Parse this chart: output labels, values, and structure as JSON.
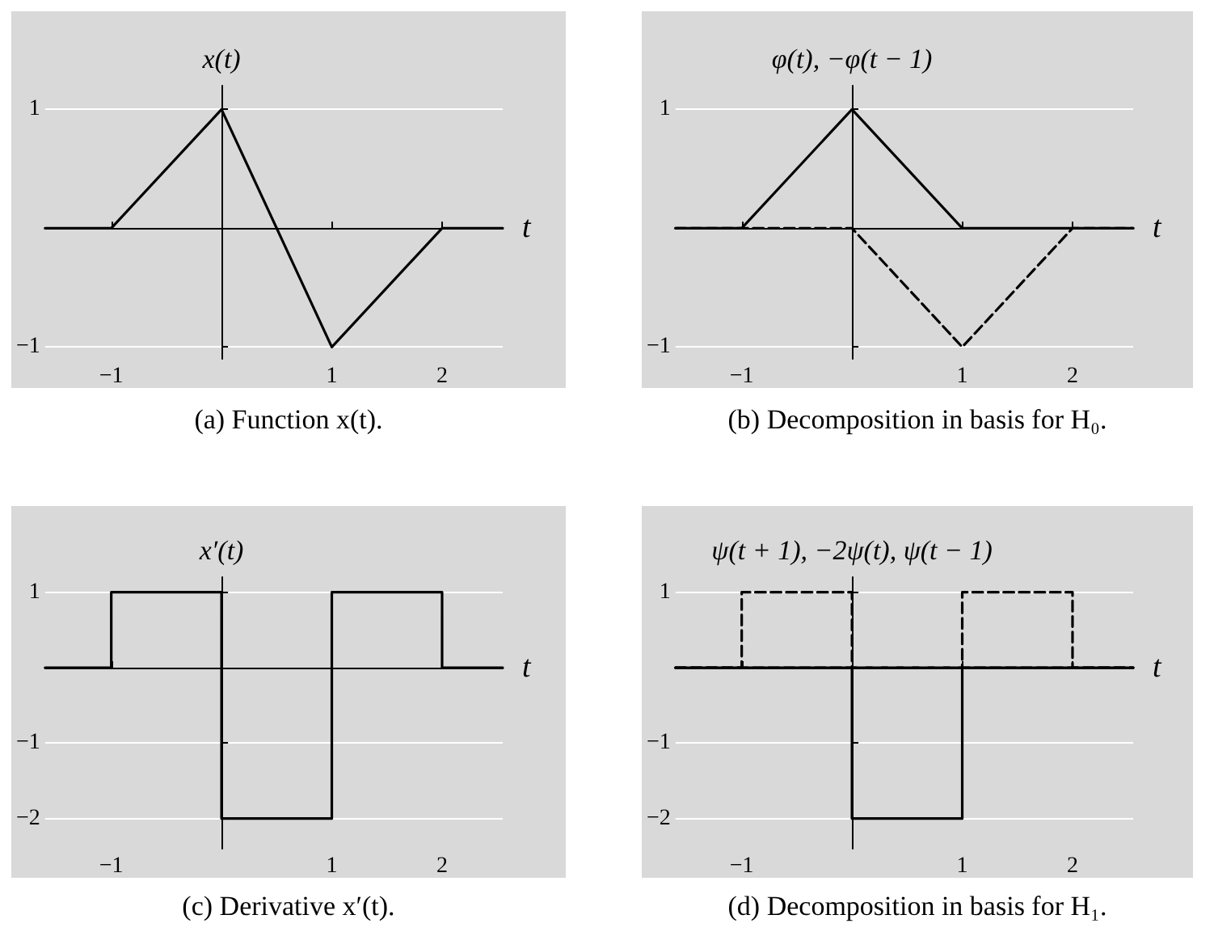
{
  "chart_data": [
    {
      "type": "line",
      "ylabel": "x(t)",
      "xlabel": "t",
      "annotations": [
        "(a) Function x(t)."
      ],
      "xlim": [
        -1.6,
        2.55
      ],
      "ylim": [
        -1.1,
        1.2
      ],
      "xticks": [
        -1,
        1,
        2
      ],
      "yticks": [
        -1,
        1
      ],
      "grid": "y",
      "series": [
        {
          "color": "#000000",
          "line_style": "solid",
          "x": [
            -1.6,
            -1,
            0,
            1,
            2,
            2.55
          ],
          "values": [
            0,
            0,
            1,
            -1,
            0,
            0
          ]
        }
      ]
    },
    {
      "type": "line",
      "ylabel": "φ(t), −φ(t − 1)",
      "xlabel": "t",
      "annotations": [
        "(b) Decomposition in basis for H₀."
      ],
      "xlim": [
        -1.6,
        2.55
      ],
      "ylim": [
        -1.1,
        1.2
      ],
      "xticks": [
        -1,
        1,
        2
      ],
      "yticks": [
        -1,
        1
      ],
      "grid": "y",
      "series": [
        {
          "color": "#000000",
          "line_style": "solid",
          "x": [
            -1.6,
            -1,
            0,
            1,
            2.55
          ],
          "values": [
            0,
            0,
            1,
            0,
            0
          ]
        },
        {
          "color": "#000000",
          "line_style": "dashed",
          "x": [
            -1.6,
            0,
            1,
            2,
            2.55
          ],
          "values": [
            0,
            0,
            -1,
            0,
            0
          ]
        }
      ]
    },
    {
      "type": "step",
      "ylabel": "x′(t)",
      "xlabel": "t",
      "annotations": [
        "(c) Derivative x′(t)."
      ],
      "xlim": [
        -1.6,
        2.55
      ],
      "ylim": [
        -2.4,
        1.2
      ],
      "xticks": [
        -1,
        1,
        2
      ],
      "yticks": [
        -2,
        -1,
        1
      ],
      "grid": "y",
      "series": [
        {
          "color": "#000000",
          "line_style": "solid",
          "x": [
            -1.6,
            -1,
            0,
            1,
            2,
            2.55
          ],
          "values": [
            0,
            1,
            -2,
            1,
            0,
            0
          ]
        }
      ]
    },
    {
      "type": "step",
      "ylabel": "ψ(t + 1), −2ψ(t), ψ(t − 1)",
      "xlabel": "t",
      "annotations": [
        "(d) Decomposition in basis for H₁."
      ],
      "xlim": [
        -1.6,
        2.55
      ],
      "ylim": [
        -2.4,
        1.2
      ],
      "xticks": [
        -1,
        1,
        2
      ],
      "yticks": [
        -2,
        -1,
        1
      ],
      "grid": "y",
      "series": [
        {
          "color": "#000000",
          "line_style": "dashed",
          "x": [
            -1.6,
            -1,
            0,
            2.55
          ],
          "values": [
            0,
            1,
            0,
            0
          ]
        },
        {
          "color": "#000000",
          "line_style": "solid",
          "x": [
            -1.6,
            0,
            1,
            2.55
          ],
          "values": [
            0,
            -2,
            0,
            0
          ]
        },
        {
          "color": "#000000",
          "line_style": "dashed",
          "x": [
            -1.6,
            1,
            2,
            2.55
          ],
          "values": [
            0,
            1,
            0,
            0
          ]
        }
      ]
    }
  ]
}
